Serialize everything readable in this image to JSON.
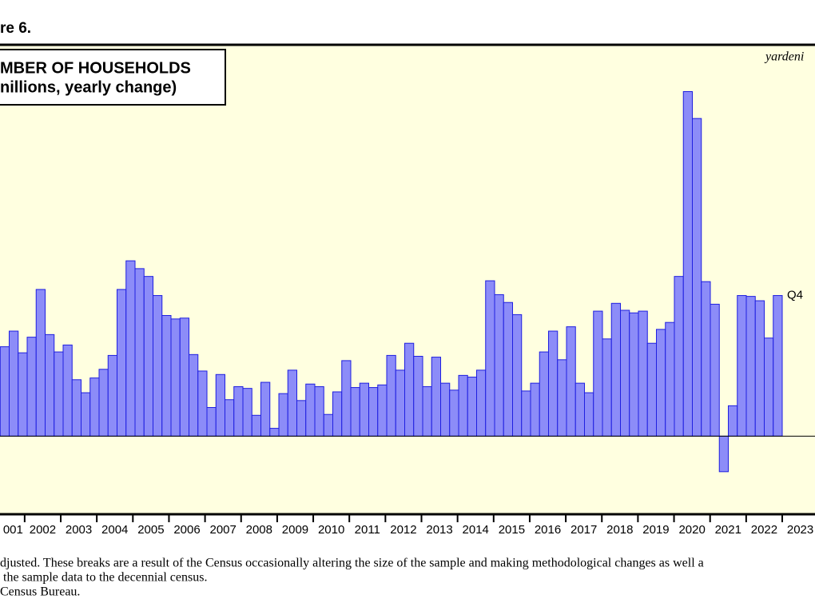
{
  "chart_data": {
    "type": "bar",
    "figure_label": "re 6.",
    "title": "MBER OF HOUSEHOLDS",
    "subtitle": "nillions, yearly change)",
    "source_mark": "yardeni",
    "annotation": "Q4",
    "x_labels": [
      "001",
      "2002",
      "2003",
      "2004",
      "2005",
      "2006",
      "2007",
      "2008",
      "2009",
      "2010",
      "2011",
      "2012",
      "2013",
      "2014",
      "2015",
      "2016",
      "2017",
      "2018",
      "2019",
      "2020",
      "2021",
      "2022",
      "2023"
    ],
    "categories": [
      null,
      null,
      null,
      null,
      null,
      null,
      null,
      null,
      null,
      null,
      null,
      null,
      null,
      null,
      null,
      null,
      null,
      null,
      null,
      null,
      null,
      null,
      null,
      null,
      null,
      null,
      null,
      null,
      null,
      null,
      null,
      null,
      null,
      null,
      null,
      null,
      null,
      null,
      null,
      null,
      null,
      null,
      null,
      null,
      null,
      null,
      null,
      null,
      null,
      null,
      null,
      null,
      null,
      null,
      null,
      null,
      null,
      null,
      null,
      null,
      null,
      null,
      null,
      null,
      null,
      null,
      null,
      null,
      null,
      null,
      null,
      null,
      null,
      null,
      null,
      null,
      null,
      null,
      null,
      null,
      null,
      null,
      null,
      null,
      null,
      null,
      null
    ],
    "values": [
      1.03,
      1.21,
      0.96,
      1.14,
      1.69,
      1.17,
      0.97,
      1.05,
      0.65,
      0.5,
      0.67,
      0.77,
      0.93,
      1.69,
      2.02,
      1.93,
      1.84,
      1.62,
      1.39,
      1.35,
      1.36,
      0.94,
      0.75,
      0.33,
      0.71,
      0.42,
      0.57,
      0.55,
      0.24,
      0.62,
      0.09,
      0.49,
      0.76,
      0.41,
      0.6,
      0.57,
      0.25,
      0.51,
      0.87,
      0.56,
      0.61,
      0.56,
      0.59,
      0.93,
      0.76,
      1.07,
      0.92,
      0.57,
      0.91,
      0.61,
      0.53,
      0.7,
      0.68,
      0.76,
      1.79,
      1.63,
      1.54,
      1.4,
      0.52,
      0.61,
      0.97,
      1.21,
      0.88,
      1.26,
      0.61,
      0.5,
      1.44,
      1.12,
      1.53,
      1.45,
      1.42,
      1.44,
      1.07,
      1.23,
      1.31,
      1.84,
      3.97,
      3.66,
      1.78,
      1.52,
      -0.41,
      0.35,
      1.62,
      1.61,
      1.56,
      1.13,
      1.62
    ],
    "color": "#8c8cf8",
    "edge_color": "#1f1fe0",
    "background": "#ffffe0",
    "ylim": [
      -0.9,
      4.5
    ],
    "footnotes": [
      "djusted. These breaks are a result of the Census occasionally altering the size of the sample and making methodological changes as well a",
      " the sample data to the decennial census.",
      "Census Bureau."
    ]
  }
}
